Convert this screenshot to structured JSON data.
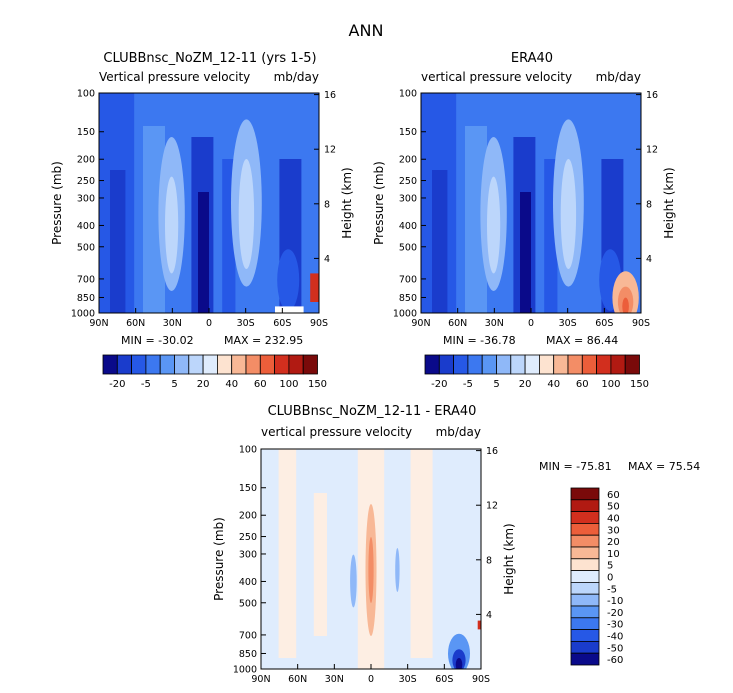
{
  "figure_title": "ANN",
  "colors": {
    "blue_scale": [
      "#0a0a8a",
      "#1a3ccc",
      "#2658e6",
      "#3c78f0",
      "#5a96f4",
      "#8fb8f8",
      "#bcd6fb",
      "#dfecfd"
    ],
    "red_scale": [
      "#fde3d0",
      "#f8b896",
      "#f38d66",
      "#ec5e3a",
      "#d22f1e",
      "#b11a12",
      "#7a0a0a"
    ],
    "neutral": "#fdeee3"
  },
  "chart_data": [
    {
      "type": "heatmap",
      "title": "CLUBBnsc_NoZM_12-11 (yrs 1-5)",
      "subtitle_left": "Vertical pressure velocity",
      "subtitle_right": "mb/day",
      "xlabel": "",
      "ylabel": "Pressure (mb)",
      "y2label": "Height (km)",
      "x_ticks": [
        "90N",
        "60N",
        "30N",
        "0",
        "30S",
        "60S",
        "90S"
      ],
      "y_ticks": [
        "100",
        "150",
        "200",
        "250",
        "300",
        "400",
        "500",
        "700",
        "850",
        "1000"
      ],
      "y2_ticks": [
        "4",
        "8",
        "12",
        "16"
      ],
      "min_label": "MIN = -30.02",
      "max_label": "MAX = 232.95",
      "colorbar_labels": [
        "-20",
        "-5",
        "5",
        "20",
        "40",
        "60",
        "100",
        "150"
      ]
    },
    {
      "type": "heatmap",
      "title": "ERA40",
      "subtitle_left": "vertical pressure velocity",
      "subtitle_right": "mb/day",
      "xlabel": "",
      "ylabel": "Pressure (mb)",
      "y2label": "Height (km)",
      "x_ticks": [
        "90N",
        "60N",
        "30N",
        "0",
        "30S",
        "60S",
        "90S"
      ],
      "y_ticks": [
        "100",
        "150",
        "200",
        "250",
        "300",
        "400",
        "500",
        "700",
        "850",
        "1000"
      ],
      "y2_ticks": [
        "4",
        "8",
        "12",
        "16"
      ],
      "min_label": "MIN = -36.78",
      "max_label": "MAX = 86.44",
      "colorbar_labels": [
        "-20",
        "-5",
        "5",
        "20",
        "40",
        "60",
        "100",
        "150"
      ]
    },
    {
      "type": "heatmap",
      "title": "CLUBBnsc_NoZM_12-11 - ERA40",
      "subtitle_left": "vertical pressure velocity",
      "subtitle_right": "mb/day",
      "xlabel": "",
      "ylabel": "Pressure (mb)",
      "y2label": "Height (km)",
      "x_ticks": [
        "90N",
        "60N",
        "30N",
        "0",
        "30S",
        "60S",
        "90S"
      ],
      "y_ticks": [
        "100",
        "150",
        "200",
        "250",
        "300",
        "400",
        "500",
        "700",
        "850",
        "1000"
      ],
      "y2_ticks": [
        "4",
        "8",
        "12",
        "16"
      ],
      "min_label": "MIN = -75.81",
      "max_label": "MAX = 75.54",
      "colorbar_labels": [
        "60",
        "50",
        "40",
        "30",
        "20",
        "10",
        "5",
        "0",
        "-5",
        "-10",
        "-20",
        "-30",
        "-40",
        "-50",
        "-60"
      ]
    }
  ]
}
